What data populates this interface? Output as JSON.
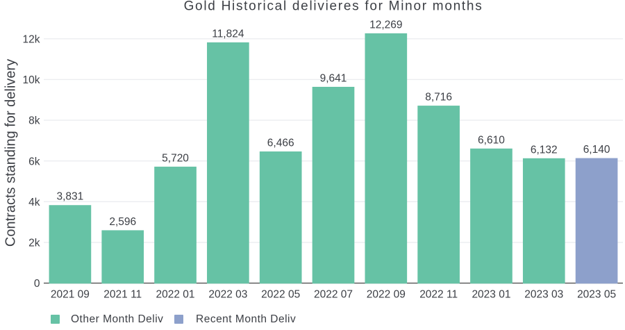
{
  "chart_data": {
    "type": "bar",
    "title": "Gold Historical delivieres for Minor months",
    "xlabel": "",
    "ylabel": "Contracts standing for delivery",
    "categories": [
      "2021 09",
      "2021 11",
      "2022 01",
      "2022 03",
      "2022 05",
      "2022 07",
      "2022 09",
      "2022 11",
      "2023 01",
      "2023 03",
      "2023 05"
    ],
    "series": [
      {
        "name": "Other Month Deliv",
        "color": "#66c2a5",
        "values": [
          3831,
          2596,
          5720,
          11824,
          6466,
          9641,
          12269,
          8716,
          6610,
          6132,
          null
        ]
      },
      {
        "name": "Recent Month Deliv",
        "color": "#8da0cb",
        "values": [
          null,
          null,
          null,
          null,
          null,
          null,
          null,
          null,
          null,
          null,
          6140
        ]
      }
    ],
    "value_labels": [
      "3,831",
      "2,596",
      "5,720",
      "11,824",
      "6,466",
      "9,641",
      "12,269",
      "8,716",
      "6,610",
      "6,132",
      "6,140"
    ],
    "yticks": {
      "values": [
        0,
        2000,
        4000,
        6000,
        8000,
        10000,
        12000
      ],
      "labels": [
        "0",
        "2k",
        "4k",
        "6k",
        "8k",
        "10k",
        "12k"
      ]
    },
    "ylim": [
      0,
      12915
    ],
    "grid": true,
    "legend_position": "bottom-left",
    "colors": {
      "background": "#ffffff",
      "gridline": "#ebedf0",
      "zeroline": "#444444",
      "text": "#3b3e44"
    }
  },
  "legend": {
    "items": [
      {
        "label": "Other Month Deliv",
        "color": "#66c2a5"
      },
      {
        "label": "Recent Month Deliv",
        "color": "#8da0cb"
      }
    ]
  }
}
